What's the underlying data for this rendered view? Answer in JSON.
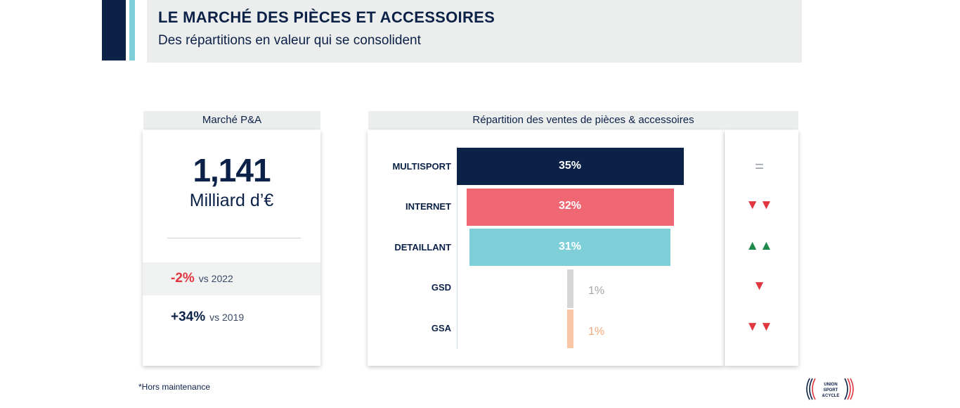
{
  "header": {
    "title": "LE MARCHÉ DES PIÈCES ET ACCESSOIRES",
    "subtitle": "Des répartitions en valeur qui se consolident"
  },
  "market_card": {
    "title": "Marché P&A",
    "value": "1,141",
    "unit": "Milliard d’€",
    "comparisons": [
      {
        "pct": "-2%",
        "label": "vs 2022"
      },
      {
        "pct": "+34%",
        "label": "vs 2019"
      }
    ]
  },
  "chart_data": {
    "type": "bar",
    "title": "Répartition des ventes de pièces & accessoires",
    "categories": [
      "MULTISPORT",
      "INTERNET",
      "DETAILLANT",
      "GSD",
      "GSA"
    ],
    "values": [
      35,
      32,
      31,
      1,
      1
    ],
    "value_labels": [
      "35%",
      "32%",
      "31%",
      "1%",
      "1%"
    ],
    "colors": [
      "#0b2147",
      "#ef6773",
      "#7ecfd8",
      "#d6d6d6",
      "#f9c6a6"
    ],
    "label_colors": [
      "#ffffff",
      "#ffffff",
      "#ffffff",
      "#a4a7aa",
      "#f2a979"
    ],
    "trends": [
      {
        "symbol": "=",
        "kind": "eq"
      },
      {
        "symbol": "▼▼",
        "kind": "down"
      },
      {
        "symbol": "▲▲",
        "kind": "up"
      },
      {
        "symbol": "▼",
        "kind": "down"
      },
      {
        "symbol": "▼▼",
        "kind": "down"
      }
    ],
    "xlim": [
      0,
      35
    ],
    "legend": "none"
  },
  "footnote": "*Hors maintenance",
  "logo": {
    "icon": "union-sport-cycle-logo",
    "text": "UNION SPORT &CYCLE"
  }
}
